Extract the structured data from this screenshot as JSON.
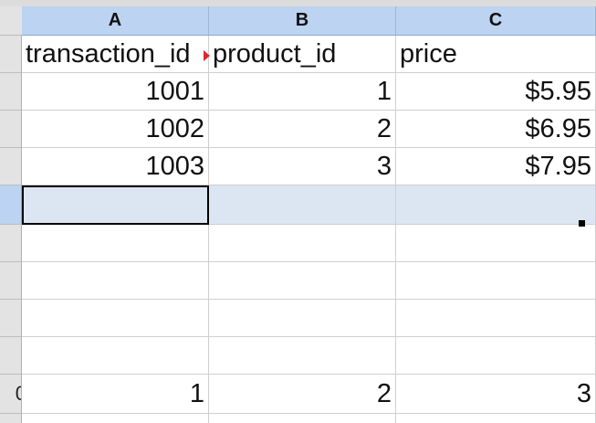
{
  "columns": [
    "A",
    "B",
    "C"
  ],
  "row_headers": [
    "",
    "",
    "",
    "",
    "",
    "",
    "",
    "",
    "",
    "0",
    ""
  ],
  "rows": [
    [
      "transaction_id",
      "product_id",
      "price"
    ],
    [
      "1001",
      "1",
      "$5.95"
    ],
    [
      "1002",
      "2",
      "$6.95"
    ],
    [
      "1003",
      "3",
      "$7.95"
    ],
    [
      "",
      "",
      ""
    ],
    [
      "",
      "",
      ""
    ],
    [
      "",
      "",
      ""
    ],
    [
      "",
      "",
      ""
    ],
    [
      "",
      "",
      ""
    ],
    [
      "1",
      "2",
      "3"
    ],
    [
      "",
      "",
      ""
    ]
  ],
  "selection": {
    "row": 4,
    "col": 0
  },
  "colors": {
    "header_selected": "#bcd3f1",
    "row_selected": "#dce6f3",
    "overflow_marker": "#e0252d"
  }
}
